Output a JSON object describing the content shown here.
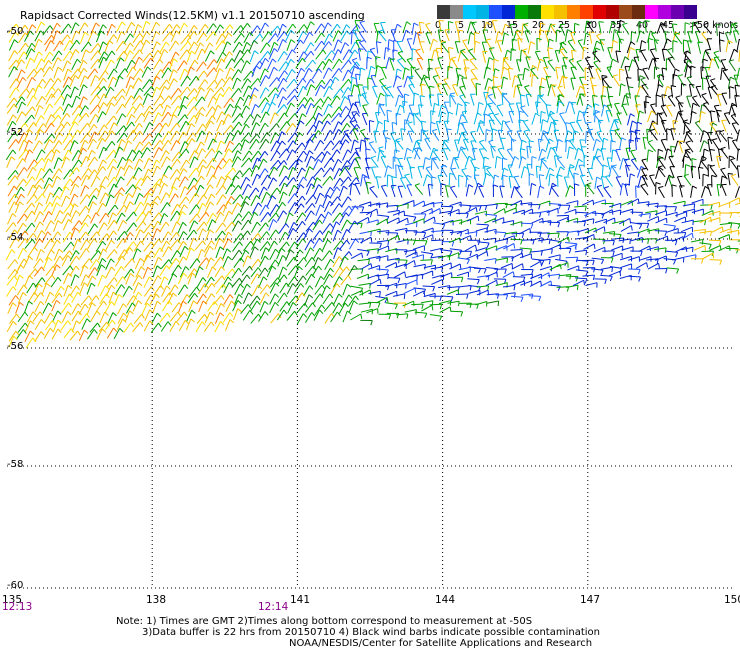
{
  "title": "Rapidsact Corrected Winds(12.5KM) v1.1 20150710 ascending",
  "legend": {
    "labels": [
      "0",
      "5",
      "10",
      "15",
      "20",
      "25",
      "30",
      "35",
      "40",
      "45",
      ">50 knots"
    ],
    "colors": [
      "#3a3a3a",
      "#8a8a8a",
      "#00c8ff",
      "#00b4e6",
      "#1e50ff",
      "#0026d6",
      "#00b000",
      "#0a7a0a",
      "#ffe000",
      "#f5c000",
      "#ff8000",
      "#ff4000",
      "#e00000",
      "#b00000",
      "#9b4a1a",
      "#6b2c10",
      "#ff00ff",
      "#b000e0",
      "#6a00b0",
      "#3a0090"
    ]
  },
  "latitude_labels": [
    "-50",
    "-52",
    "-54",
    "-56",
    "-58",
    "-60"
  ],
  "longitude_labels": [
    "135",
    "138",
    "141",
    "144",
    "147",
    "150"
  ],
  "time_labels": [
    "12:13",
    "12:14"
  ],
  "notes": [
    "Note: 1) Times are GMT 2)Times along bottom correspond to measurement at -50S",
    "3)Data buffer is 22 hrs from 20150710 4) Black wind barbs indicate possible contamination",
    "NOAA/NESDIS/Center for Satellite Applications and Research"
  ],
  "map": {
    "lat_range": [
      -60,
      -50
    ],
    "lon_range": [
      135,
      150
    ],
    "grid": "dotted",
    "swath_note": "wind barbs cover the north part of the map; lower edge runs from about 55.8S at 135E to 54.2S at 150E"
  }
}
